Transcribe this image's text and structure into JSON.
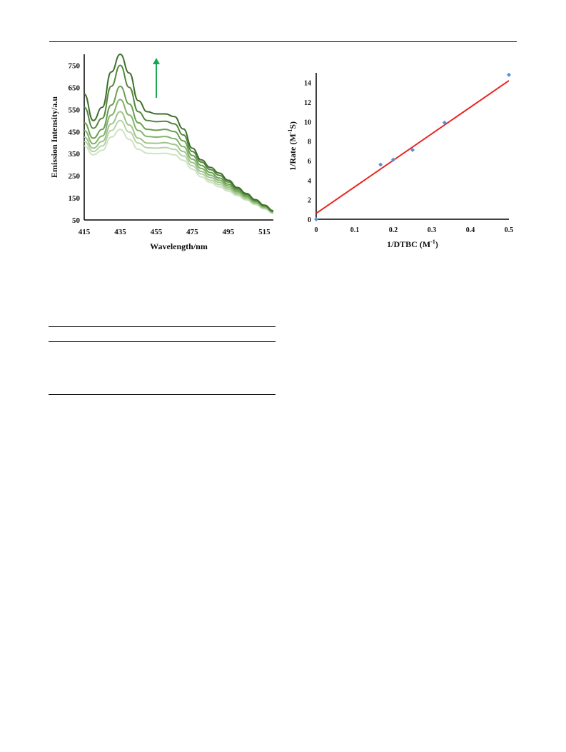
{
  "chart_data": [
    {
      "type": "line",
      "xlabel": "Wavelength/nm",
      "ylabel": "Emission Intensity/a.u",
      "xlim": [
        415,
        520
      ],
      "ylim": [
        50,
        800
      ],
      "xticks": [
        415,
        435,
        455,
        475,
        495,
        515
      ],
      "yticks": [
        50,
        150,
        250,
        350,
        450,
        550,
        650,
        750
      ],
      "grid": false,
      "annotation": "green upward arrow indicating increasing intensity",
      "x": [
        415,
        420,
        425,
        430,
        435,
        440,
        445,
        450,
        455,
        460,
        465,
        470,
        475,
        480,
        485,
        490,
        495,
        500,
        505,
        510,
        515,
        520
      ],
      "series": [
        {
          "color": "#cfe3c4",
          "values": [
            385,
            345,
            365,
            425,
            460,
            415,
            370,
            352,
            350,
            352,
            345,
            320,
            280,
            245,
            220,
            200,
            180,
            160,
            140,
            120,
            100,
            80
          ]
        },
        {
          "color": "#b7d3a7",
          "values": [
            405,
            360,
            385,
            455,
            500,
            448,
            398,
            377,
            375,
            378,
            370,
            340,
            295,
            258,
            230,
            210,
            188,
            166,
            145,
            123,
            103,
            82
          ]
        },
        {
          "color": "#9ec48a",
          "values": [
            425,
            375,
            405,
            485,
            540,
            480,
            420,
            398,
            397,
            400,
            392,
            360,
            310,
            270,
            242,
            220,
            196,
            172,
            150,
            127,
            106,
            84
          ]
        },
        {
          "color": "#82b26b",
          "values": [
            455,
            395,
            430,
            525,
            595,
            525,
            455,
            428,
            425,
            428,
            418,
            382,
            325,
            283,
            253,
            230,
            204,
            178,
            155,
            131,
            109,
            86
          ]
        },
        {
          "color": "#6a9e51",
          "values": [
            490,
            420,
            460,
            570,
            655,
            575,
            490,
            460,
            456,
            460,
            450,
            408,
            342,
            297,
            265,
            240,
            212,
            184,
            160,
            135,
            112,
            88
          ]
        },
        {
          "color": "#54873d",
          "values": [
            560,
            465,
            510,
            655,
            750,
            650,
            540,
            500,
            495,
            497,
            485,
            435,
            360,
            312,
            278,
            252,
            222,
            191,
            166,
            139,
            115,
            90
          ]
        },
        {
          "color": "#3f6f2c",
          "values": [
            620,
            500,
            560,
            720,
            800,
            715,
            590,
            540,
            530,
            530,
            518,
            462,
            375,
            322,
            288,
            262,
            230,
            197,
            170,
            142,
            117,
            92
          ]
        }
      ]
    },
    {
      "type": "scatter",
      "xlabel": "1/DTBC (M",
      "xlabel_sup": "-1",
      "xlabel_end": ")",
      "ylabel": "1/Rate (M",
      "ylabel_sup": "-1",
      "ylabel_end": "S)",
      "xlim": [
        0,
        0.5
      ],
      "ylim": [
        0,
        15
      ],
      "xticks": [
        0,
        0.1,
        0.2,
        0.3,
        0.4,
        0.5
      ],
      "yticks": [
        0,
        2,
        4,
        6,
        8,
        10,
        12,
        14
      ],
      "grid": false,
      "points": [
        {
          "x": 0,
          "y": 0
        },
        {
          "x": 0.167,
          "y": 5.6
        },
        {
          "x": 0.2,
          "y": 6.1
        },
        {
          "x": 0.25,
          "y": 7.1
        },
        {
          "x": 0.333,
          "y": 9.9
        },
        {
          "x": 0.5,
          "y": 14.8
        }
      ],
      "point_color": "#5b8fd6",
      "fit_line": {
        "x": [
          0,
          0.5
        ],
        "y": [
          0.6,
          14.2
        ],
        "color": "#e8261f"
      }
    }
  ]
}
